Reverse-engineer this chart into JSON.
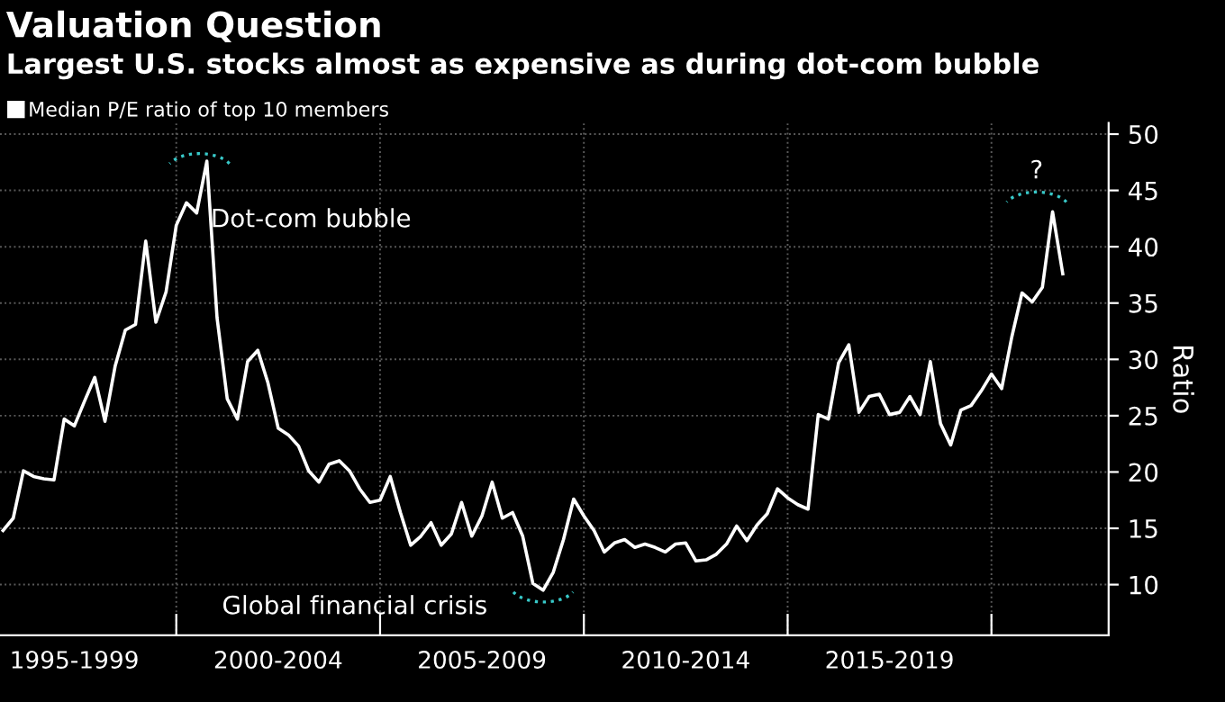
{
  "chart_data": {
    "type": "line",
    "title": "Valuation Question",
    "subtitle": "Largest U.S. stocks almost as expensive as during dot-com bubble",
    "ylabel": "Ratio",
    "legend": "top left",
    "grid": true,
    "marker": "none",
    "line_style": "solid",
    "categories": [
      null,
      null,
      null,
      null,
      null,
      null,
      null,
      "1995-1999",
      null,
      null,
      null,
      null,
      null,
      null,
      null,
      null,
      null,
      null,
      null,
      null,
      null,
      null,
      null,
      null,
      null,
      null,
      null,
      "2000-2004",
      null,
      null,
      null,
      null,
      null,
      null,
      null,
      null,
      null,
      null,
      null,
      null,
      null,
      null,
      null,
      null,
      null,
      null,
      null,
      "2005-2009",
      null,
      null,
      null,
      null,
      null,
      null,
      null,
      null,
      null,
      null,
      null,
      null,
      null,
      null,
      null,
      null,
      null,
      null,
      null,
      "2010-2014",
      null,
      null,
      null,
      null,
      null,
      null,
      null,
      null,
      null,
      null,
      null,
      null,
      null,
      null,
      null,
      null,
      null,
      null,
      null,
      "2015-2019",
      null,
      null,
      null,
      null,
      null,
      null,
      null,
      null,
      null,
      null,
      null,
      null,
      null,
      null,
      null,
      null,
      null
    ],
    "ylim": [
      5.5,
      51
    ],
    "yticks": [
      10,
      15,
      20,
      25,
      30,
      35,
      40,
      45,
      50
    ],
    "annotations": [
      "Dot-com bubble",
      "Global financial crisis",
      "?"
    ],
    "series": [
      {
        "name": "Median P/E ratio of top 10 members",
        "color": "#ffffff",
        "values": [
          14.8,
          15.9,
          20.1,
          19.6,
          19.4,
          19.3,
          24.7,
          24.1,
          26.3,
          28.4,
          24.5,
          29.4,
          32.6,
          33.1,
          40.5,
          33.3,
          36.0,
          41.9,
          43.9,
          43.0,
          47.6,
          33.7,
          26.5,
          24.7,
          29.8,
          30.8,
          27.9,
          23.9,
          23.3,
          22.3,
          20.1,
          19.1,
          20.7,
          21.0,
          20.1,
          18.5,
          17.3,
          17.5,
          19.6,
          16.4,
          13.5,
          14.3,
          15.5,
          13.5,
          14.5,
          17.3,
          14.3,
          16.1,
          19.1,
          15.9,
          16.4,
          14.3,
          10.1,
          9.5,
          11.1,
          14.0,
          17.6,
          16.1,
          14.8,
          12.9,
          13.7,
          14.0,
          13.3,
          13.6,
          13.3,
          12.9,
          13.6,
          13.7,
          12.1,
          12.2,
          12.7,
          13.6,
          15.2,
          13.9,
          15.3,
          16.3,
          18.5,
          17.7,
          17.1,
          16.7,
          25.1,
          24.7,
          29.7,
          31.3,
          25.3,
          26.7,
          26.9,
          25.1,
          25.3,
          26.7,
          25.1,
          29.8,
          24.3,
          22.4,
          25.5,
          25.9,
          27.2,
          28.7,
          27.4,
          32.0,
          35.9,
          35.1,
          36.4,
          43.1,
          37.6
        ]
      }
    ]
  }
}
